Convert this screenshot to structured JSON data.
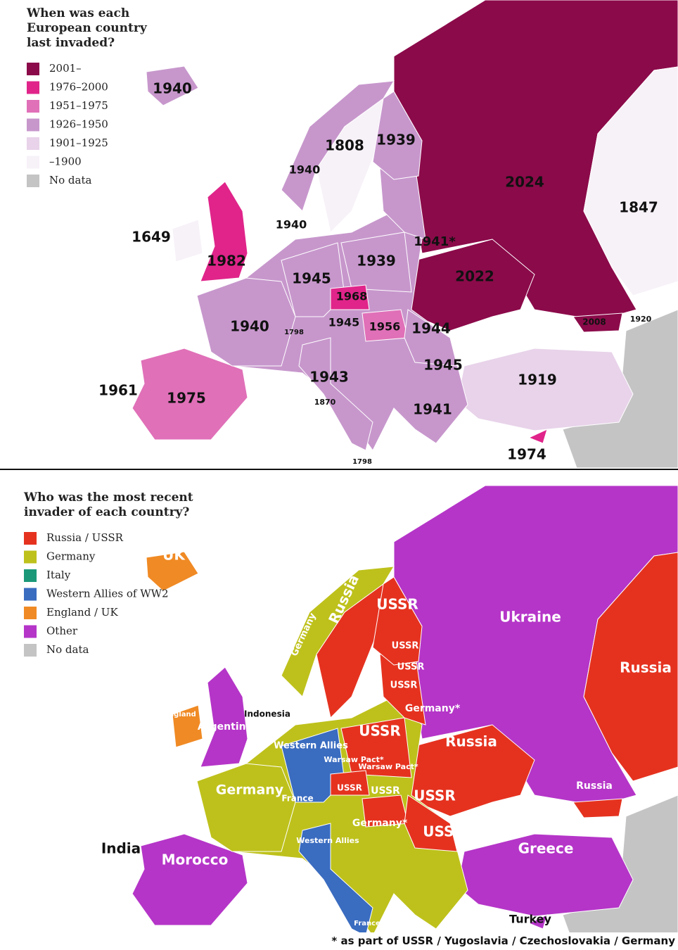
{
  "top_map": {
    "title_lines": [
      "When was each",
      "European country",
      "last invaded?"
    ],
    "legend": [
      {
        "label": "2001–",
        "color": "#8b0a4a"
      },
      {
        "label": "1976–2000",
        "color": "#e0248a"
      },
      {
        "label": "1951–1975",
        "color": "#e070b8"
      },
      {
        "label": "1926–1950",
        "color": "#c797cc"
      },
      {
        "label": "1901–1925",
        "color": "#e8d3ea"
      },
      {
        "label": "–1900",
        "color": "#f7f1f8"
      },
      {
        "label": "No data",
        "color": "#c4c4c4"
      }
    ],
    "labels": [
      "1940",
      "1808",
      "1939",
      "1940",
      "2024",
      "1847",
      "1940",
      "1649",
      "1941*",
      "1982",
      "1939",
      "1945",
      "2022",
      "1968",
      "1940",
      "1945",
      "1956",
      "1944",
      "2008",
      "1920",
      "1945",
      "1943",
      "1919",
      "1961",
      "1975",
      "1870",
      "1941",
      "1974",
      "1798",
      "1798"
    ]
  },
  "bottom_map": {
    "title_lines": [
      "Who was the most recent",
      "invader of each country?"
    ],
    "legend": [
      {
        "label": "Russia / USSR",
        "color": "#e5321f"
      },
      {
        "label": "Germany",
        "color": "#bec11b"
      },
      {
        "label": "Italy",
        "color": "#1b9878"
      },
      {
        "label": "Western Allies of WW2",
        "color": "#3a6cc0"
      },
      {
        "label": "England / UK",
        "color": "#f08a24"
      },
      {
        "label": "Other",
        "color": "#b535c8"
      },
      {
        "label": "No data",
        "color": "#c4c4c4"
      }
    ],
    "labels": [
      "UK",
      "Russia",
      "USSR",
      "Germany",
      "Ukraine",
      "USSR",
      "USSR",
      "Russia",
      "USSR",
      "Germany*",
      "Indonesia",
      "England",
      "Argentina",
      "USSR",
      "Western Allies",
      "Russia",
      "Warsaw Pact*",
      "Warsaw Pact*",
      "Germany",
      "USSR",
      "USSR",
      "USSR",
      "Russia",
      "France",
      "Germany*",
      "USSR",
      "India",
      "Morocco",
      "Western Allies",
      "Greece",
      "Turkey",
      "France"
    ]
  },
  "footnote": "* as part of USSR / Yugoslavia / Czechoslovakia / Germany"
}
